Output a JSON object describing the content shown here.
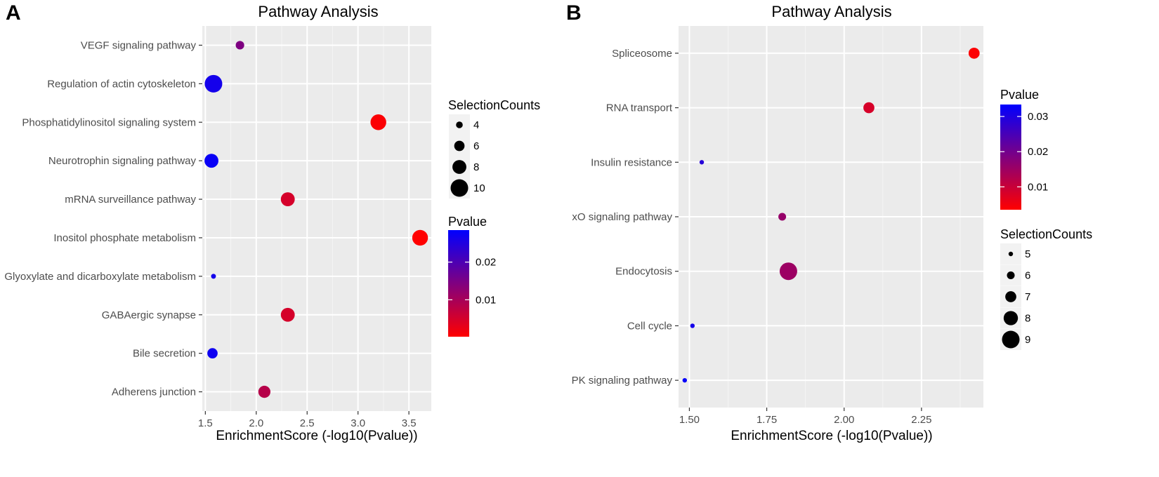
{
  "chart_data": [
    {
      "panel": "A",
      "type": "scatter",
      "title": "Pathway Analysis",
      "xlabel": "EnrichmentScore (-log10(Pvalue))",
      "ylabel": "",
      "xlim": [
        1.47,
        3.72
      ],
      "xticks": [
        1.5,
        2.0,
        2.5,
        3.0,
        3.5
      ],
      "xtick_labels": [
        "1.5",
        "2.0",
        "2.5",
        "3.0",
        "3.5"
      ],
      "categories": [
        "VEGF signaling pathway",
        "Regulation of actin cytoskeleton",
        "Phosphatidylinositol signaling system",
        "Neurotrophin signaling pathway",
        "mRNA surveillance pathway",
        "Inositol phosphate metabolism",
        "Glyoxylate and dicarboxylate metabolism",
        "GABAergic synapse",
        "Bile secretion",
        "Adherens junction"
      ],
      "points": [
        {
          "category": "VEGF signaling pathway",
          "x": 1.84,
          "size": 5,
          "pvalue": 0.0145
        },
        {
          "category": "Regulation of actin cytoskeleton",
          "x": 1.58,
          "size": 10,
          "pvalue": 0.0263
        },
        {
          "category": "Phosphatidylinositol signaling system",
          "x": 3.2,
          "size": 9,
          "pvalue": 0.0006
        },
        {
          "category": "Neurotrophin signaling pathway",
          "x": 1.56,
          "size": 8,
          "pvalue": 0.0275
        },
        {
          "category": "mRNA surveillance pathway",
          "x": 2.31,
          "size": 8,
          "pvalue": 0.0049
        },
        {
          "category": "Inositol phosphate metabolism",
          "x": 3.61,
          "size": 9,
          "pvalue": 0.0002
        },
        {
          "category": "Glyoxylate and dicarboxylate metabolism",
          "x": 1.58,
          "size": 3,
          "pvalue": 0.0263
        },
        {
          "category": "GABAergic synapse",
          "x": 2.31,
          "size": 8,
          "pvalue": 0.0049
        },
        {
          "category": "Bile secretion",
          "x": 1.57,
          "size": 6,
          "pvalue": 0.0269
        },
        {
          "category": "Adherens junction",
          "x": 2.08,
          "size": 7,
          "pvalue": 0.0083
        }
      ],
      "size_legend": {
        "title": "SelectionCounts",
        "values": [
          4,
          6,
          8,
          10
        ],
        "labels": [
          "4",
          "6",
          "8",
          "10"
        ],
        "range": [
          3,
          10
        ]
      },
      "color_legend": {
        "title": "Pvalue",
        "ticks": [
          0.01,
          0.02
        ],
        "labels": [
          "0.01",
          "0.02"
        ],
        "range": [
          0.0002,
          0.0285
        ],
        "low_color": "#ff0000",
        "high_color": "#0000ff"
      }
    },
    {
      "panel": "B",
      "type": "scatter",
      "title": "Pathway Analysis",
      "xlabel": "EnrichmentScore (-log10(Pvalue))",
      "ylabel": "",
      "xlim": [
        1.465,
        2.45
      ],
      "xticks": [
        1.5,
        1.75,
        2.0,
        2.25
      ],
      "xtick_labels": [
        "1.50",
        "1.75",
        "2.00",
        "2.25"
      ],
      "categories": [
        "Spliceosome",
        "RNA transport",
        "Insulin resistance",
        "FoxO signaling pathway",
        "Endocytosis",
        "Cell cycle",
        "MAPK signaling pathway"
      ],
      "category_display": [
        "Spliceosome",
        "RNA transport",
        "Insulin resistance",
        "xO signaling pathway",
        "Endocytosis",
        "Cell cycle",
        "PK signaling pathway"
      ],
      "points": [
        {
          "category": "Spliceosome",
          "x": 2.42,
          "size": 7,
          "pvalue": 0.0038
        },
        {
          "category": "RNA transport",
          "x": 2.08,
          "size": 7,
          "pvalue": 0.0083
        },
        {
          "category": "Insulin resistance",
          "x": 1.54,
          "size": 5,
          "pvalue": 0.0289
        },
        {
          "category": "FoxO signaling pathway",
          "x": 1.8,
          "size": 6,
          "pvalue": 0.0158
        },
        {
          "category": "Endocytosis",
          "x": 1.82,
          "size": 9,
          "pvalue": 0.0151
        },
        {
          "category": "Cell cycle",
          "x": 1.51,
          "size": 5,
          "pvalue": 0.0309
        },
        {
          "category": "MAPK signaling pathway",
          "x": 1.485,
          "size": 5,
          "pvalue": 0.0327
        }
      ],
      "size_legend": {
        "title": "SelectionCounts",
        "values": [
          5,
          6,
          7,
          8,
          9
        ],
        "labels": [
          "5",
          "6",
          "7",
          "8",
          "9"
        ],
        "range": [
          5,
          9
        ]
      },
      "color_legend": {
        "title": "Pvalue",
        "ticks": [
          0.01,
          0.02,
          0.03
        ],
        "labels": [
          "0.01",
          "0.02",
          "0.03"
        ],
        "range": [
          0.0035,
          0.0334
        ],
        "low_color": "#ff0000",
        "high_color": "#0000ff"
      }
    }
  ]
}
